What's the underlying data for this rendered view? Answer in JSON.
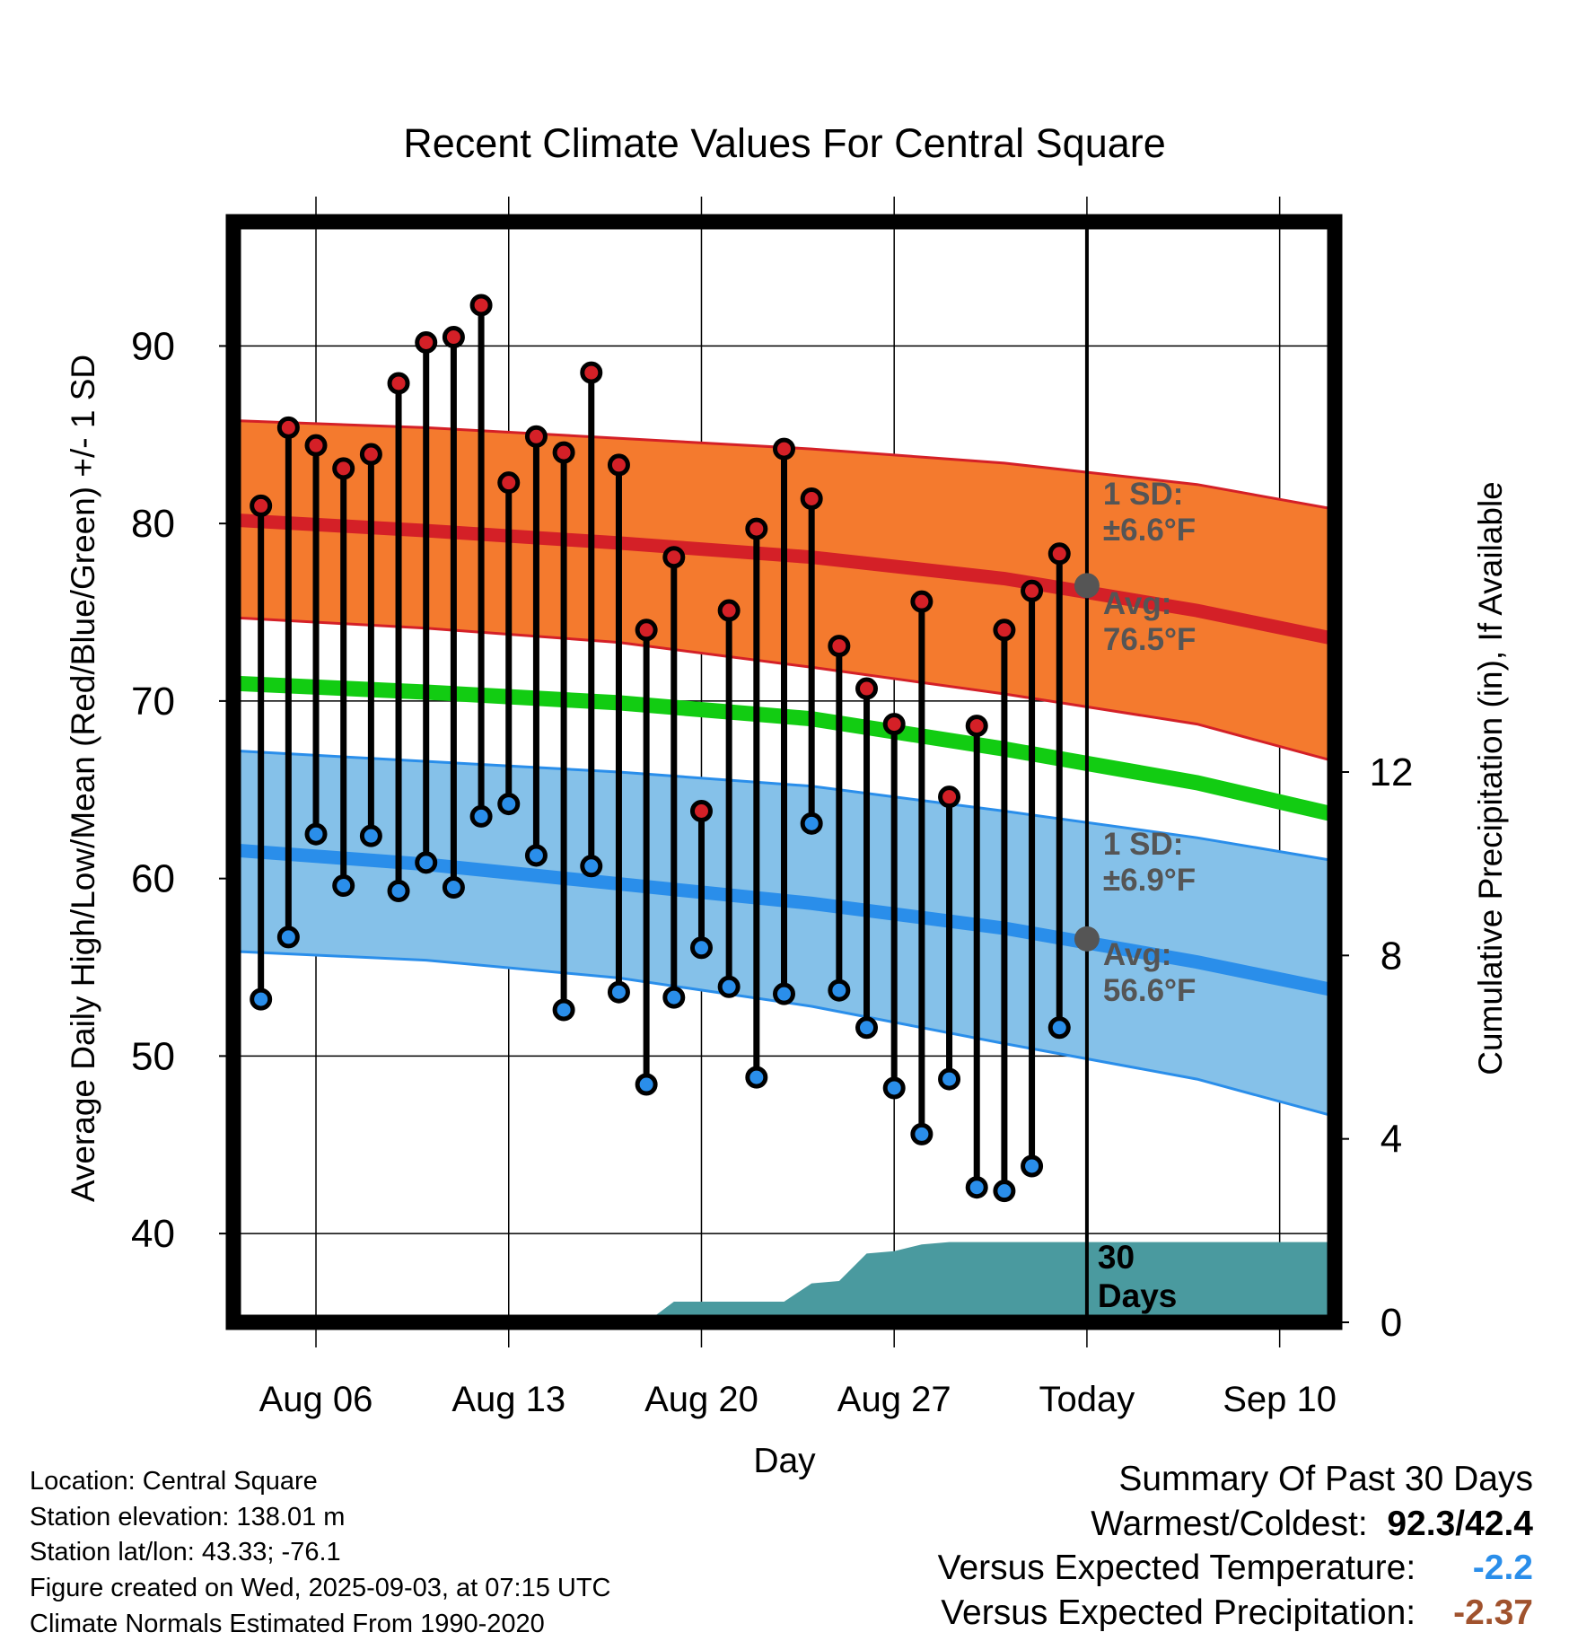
{
  "chart_data": {
    "type": "line",
    "title": "Recent Climate Values For Central Square",
    "xlabel": "Day",
    "ylabel": "Average Daily High/Low/Mean (Red/Blue/Green) +/- 1 SD",
    "y2label": "Cumulative Precipitation (in), If Available",
    "ylim": [
      35,
      97
    ],
    "y2lim": [
      0,
      24
    ],
    "yticks": [
      "40",
      "50",
      "60",
      "70",
      "80",
      "90"
    ],
    "y2ticks": [
      "0",
      "4",
      "8",
      "12"
    ],
    "x_domain": [
      "2025-08-03",
      "2025-09-12"
    ],
    "x_ticks": [
      {
        "date": "2025-08-06",
        "label": "Aug 06"
      },
      {
        "date": "2025-08-13",
        "label": "Aug 13"
      },
      {
        "date": "2025-08-20",
        "label": "Aug 20"
      },
      {
        "date": "2025-08-27",
        "label": "Aug 27"
      },
      {
        "date": "2025-09-03",
        "label": "Today"
      },
      {
        "date": "2025-09-10",
        "label": "Sep 10"
      }
    ],
    "today": "2025-09-03",
    "grid": true,
    "observed": {
      "dates": [
        "2025-08-04",
        "2025-08-05",
        "2025-08-06",
        "2025-08-07",
        "2025-08-08",
        "2025-08-09",
        "2025-08-10",
        "2025-08-11",
        "2025-08-12",
        "2025-08-13",
        "2025-08-14",
        "2025-08-15",
        "2025-08-16",
        "2025-08-17",
        "2025-08-18",
        "2025-08-19",
        "2025-08-20",
        "2025-08-21",
        "2025-08-22",
        "2025-08-23",
        "2025-08-24",
        "2025-08-25",
        "2025-08-26",
        "2025-08-27",
        "2025-08-28",
        "2025-08-29",
        "2025-08-30",
        "2025-08-31",
        "2025-09-01",
        "2025-09-02"
      ],
      "high": [
        81.0,
        85.4,
        84.4,
        83.1,
        83.9,
        87.9,
        90.2,
        90.5,
        92.3,
        82.3,
        84.9,
        84.0,
        88.5,
        83.3,
        74.0,
        78.1,
        63.8,
        75.1,
        79.7,
        84.2,
        81.4,
        73.1,
        70.7,
        68.7,
        75.6,
        64.6,
        68.6,
        74.0,
        76.2,
        78.3
      ],
      "low": [
        53.2,
        56.7,
        62.5,
        59.6,
        62.4,
        59.3,
        60.9,
        59.5,
        63.5,
        64.2,
        61.3,
        52.6,
        60.7,
        53.6,
        48.4,
        53.3,
        56.1,
        53.9,
        48.8,
        53.5,
        63.1,
        53.7,
        51.6,
        48.2,
        45.6,
        48.7,
        42.6,
        42.4,
        43.8,
        51.6
      ],
      "high_color": "#d42027",
      "low_color": "#2a8eea"
    },
    "normals": {
      "dates": [
        "2025-08-03",
        "2025-08-10",
        "2025-08-17",
        "2025-08-24",
        "2025-08-31",
        "2025-09-07",
        "2025-09-12"
      ],
      "high_avg": [
        80.2,
        79.6,
        78.9,
        78.1,
        76.9,
        75.1,
        73.5
      ],
      "high_sd_upper": [
        85.8,
        85.4,
        84.8,
        84.2,
        83.4,
        82.2,
        80.8
      ],
      "high_sd_lower": [
        74.7,
        74.1,
        73.3,
        71.9,
        70.4,
        68.7,
        66.6
      ],
      "mean_avg": [
        71.0,
        70.5,
        69.9,
        69.0,
        67.3,
        65.4,
        63.6
      ],
      "low_avg": [
        61.6,
        60.8,
        59.7,
        58.6,
        57.2,
        55.3,
        53.7
      ],
      "low_sd_upper": [
        67.2,
        66.6,
        66.0,
        65.2,
        63.8,
        62.3,
        61.0
      ],
      "low_sd_lower": [
        55.9,
        55.4,
        54.4,
        52.8,
        50.7,
        48.7,
        46.6
      ]
    },
    "precip_cumulative": {
      "dates": [
        "2025-08-03",
        "2025-08-18",
        "2025-08-19",
        "2025-08-23",
        "2025-08-24",
        "2025-08-25",
        "2025-08-26",
        "2025-08-27",
        "2025-08-28",
        "2025-08-29",
        "2025-09-12"
      ],
      "values": [
        0,
        0,
        0.45,
        0.45,
        0.85,
        0.9,
        1.5,
        1.55,
        1.7,
        1.75,
        1.75
      ],
      "color": "#4a9a9f"
    },
    "annotations": {
      "high_sd_label": [
        "1 SD:",
        "±6.6°F"
      ],
      "high_avg_label": [
        "Avg:",
        "76.5°F"
      ],
      "low_sd_label": [
        "1 SD:",
        "±6.9°F"
      ],
      "low_avg_label": [
        "Avg:",
        "56.6°F"
      ],
      "today_high_avg": 76.5,
      "today_low_avg": 56.6,
      "precip_days_label": [
        "30",
        "Days"
      ]
    },
    "colors": {
      "high_band": "#f47a2e",
      "high_line": "#d42027",
      "mean_line": "#12cc12",
      "low_band": "#85c1e9",
      "low_line": "#2a8eea",
      "annotation_text": "#555555",
      "today_marker": "#555555"
    }
  },
  "info": {
    "location": "Location: Central Square",
    "elevation": "Station elevation: 138.01 m",
    "latlon": "Station lat/lon: 43.33; -76.1",
    "created": "Figure created on Wed, 2025-09-03, at 07:15 UTC",
    "normals": "Climate Normals Estimated From 1990-2020"
  },
  "summary": {
    "heading": "Summary Of Past 30 Days",
    "warm_cold_label": "Warmest/Coldest:",
    "warm_cold_value": "92.3/42.4",
    "temp_label": "Versus Expected Temperature:",
    "temp_value": "-2.2",
    "temp_color": "#2a8eea",
    "precip_label": "Versus Expected Precipitation:",
    "precip_value": "-2.37",
    "precip_color": "#a0522d"
  }
}
